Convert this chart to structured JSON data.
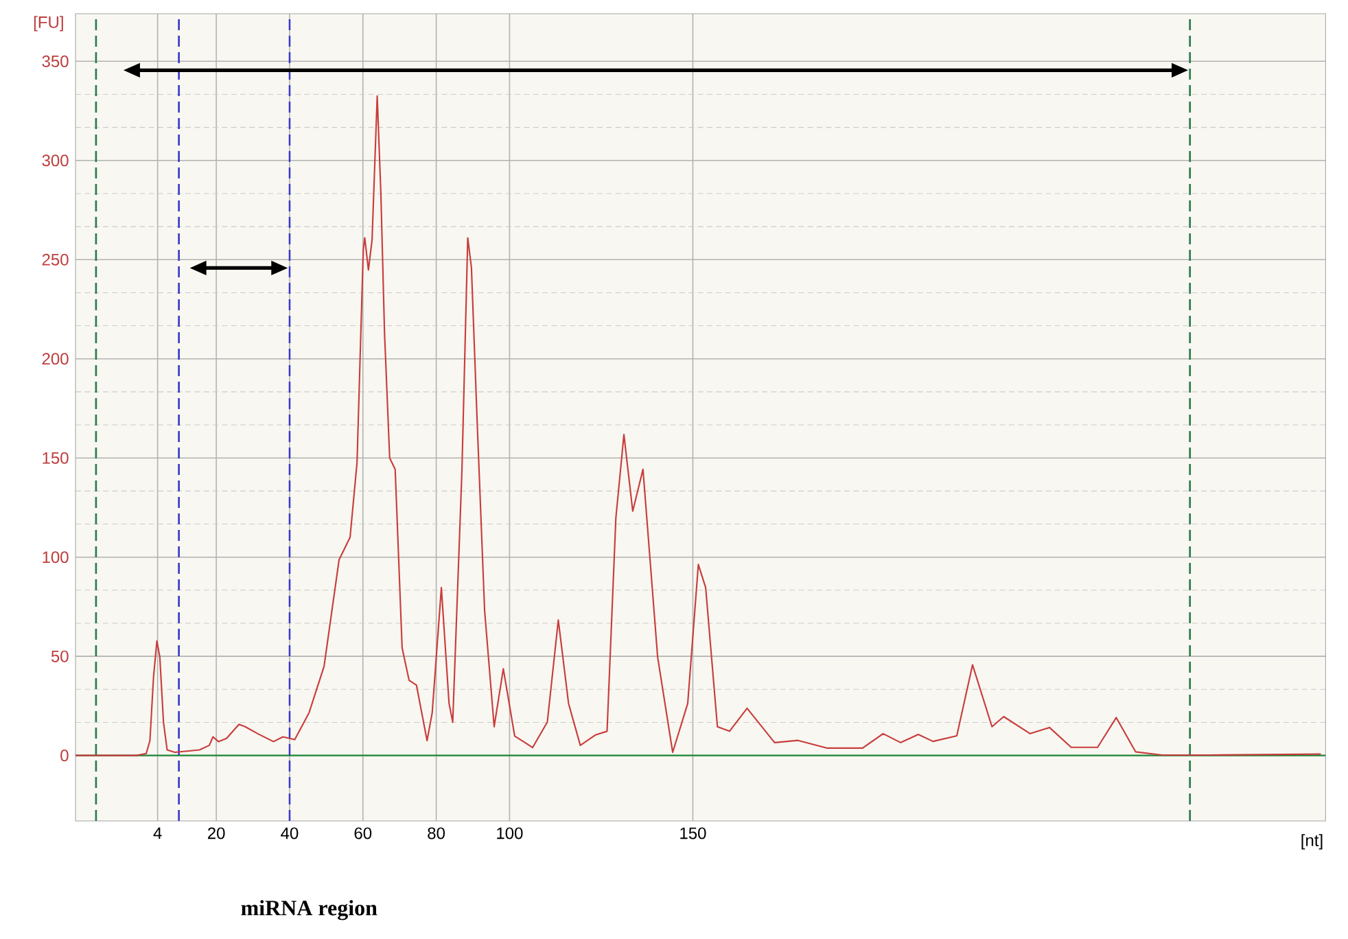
{
  "chart_data": {
    "type": "line",
    "xlabel": "[nt]",
    "ylabel": "[FU]",
    "annotations": [
      "miRNA region"
    ],
    "xlim": [
      -18.4,
      322.6
    ],
    "ylim": [
      -33,
      374
    ],
    "xticks": [
      4,
      20,
      40,
      60,
      80,
      100,
      150
    ],
    "yticks": [
      0,
      50,
      100,
      150,
      200,
      250,
      300,
      350
    ],
    "grid": true,
    "marker": "none",
    "line_style": "solid",
    "color": "#c83c3c",
    "x": [
      -18.4,
      -1.8,
      0.9,
      1.9,
      2.9,
      3.8,
      4.6,
      5.6,
      6.6,
      8.7,
      15.4,
      18.1,
      19.1,
      20.6,
      22.8,
      26.2,
      27.9,
      31.3,
      35.6,
      38.2,
      41.4,
      45.3,
      49.4,
      53.5,
      56.5,
      58.4,
      60.1,
      60.5,
      61.5,
      62.5,
      63.9,
      64.9,
      65.9,
      67.3,
      68.8,
      70.7,
      72.6,
      74.6,
      77.5,
      78.9,
      81.4,
      83.5,
      84.5,
      87.0,
      88.6,
      89.6,
      91.2,
      93.2,
      95.8,
      98.3,
      101.4,
      106.3,
      110.3,
      113.3,
      116.1,
      119.3,
      123.4,
      126.6,
      129.0,
      131.2,
      133.6,
      136.4,
      140.4,
      144.5,
      148.6,
      151.5,
      153.5,
      156.7,
      160.0,
      164.8,
      172.3,
      178.7,
      186.7,
      196.3,
      201.9,
      206.7,
      211.5,
      215.5,
      222.0,
      226.3,
      231.6,
      234.8,
      242.0,
      247.3,
      253.2,
      260.4,
      265.5,
      270.8,
      278.0,
      290.9,
      321.3
    ],
    "values": [
      0,
      0,
      1,
      7.5,
      40,
      57.7,
      49.6,
      16.8,
      2.8,
      1.6,
      2.8,
      5.1,
      9.4,
      7,
      8.6,
      15.7,
      14.5,
      11,
      7,
      9.4,
      8,
      21.5,
      44.9,
      98.7,
      110,
      147.8,
      255,
      261,
      244.8,
      260,
      332.5,
      283.4,
      213,
      150,
      144.3,
      54.2,
      37.9,
      35.5,
      7.5,
      21.5,
      84.6,
      26.2,
      16.8,
      143,
      261,
      246,
      166.6,
      73,
      14.5,
      43.7,
      9.8,
      4,
      16.8,
      68.3,
      26.2,
      5.1,
      10.3,
      12.2,
      119.7,
      161.8,
      123.2,
      144.3,
      49.6,
      1.6,
      26.2,
      96.3,
      84.6,
      14.5,
      12.2,
      23.8,
      6.5,
      7.6,
      3.7,
      3.7,
      11,
      6.5,
      10.6,
      7.1,
      9.9,
      45.7,
      14.5,
      19.6,
      11,
      14.1,
      4.1,
      4.1,
      19.1,
      1.8,
      0.2,
      0.2,
      0.7
    ],
    "ref_lines": [
      {
        "axis": "y",
        "value": 0,
        "color": "#1f8a3a",
        "line_style": "solid"
      },
      {
        "axis": "x",
        "value": -12.8,
        "color": "#2a7a4a",
        "line_style": "dashed"
      },
      {
        "axis": "x",
        "value": 285.6,
        "color": "#2a7a4a",
        "line_style": "dashed"
      },
      {
        "axis": "x",
        "value": 9.8,
        "color": "#3a3ac8",
        "line_style": "dashed"
      },
      {
        "axis": "x",
        "value": 40,
        "color": "#3a3ac8",
        "line_style": "dashed"
      }
    ]
  }
}
